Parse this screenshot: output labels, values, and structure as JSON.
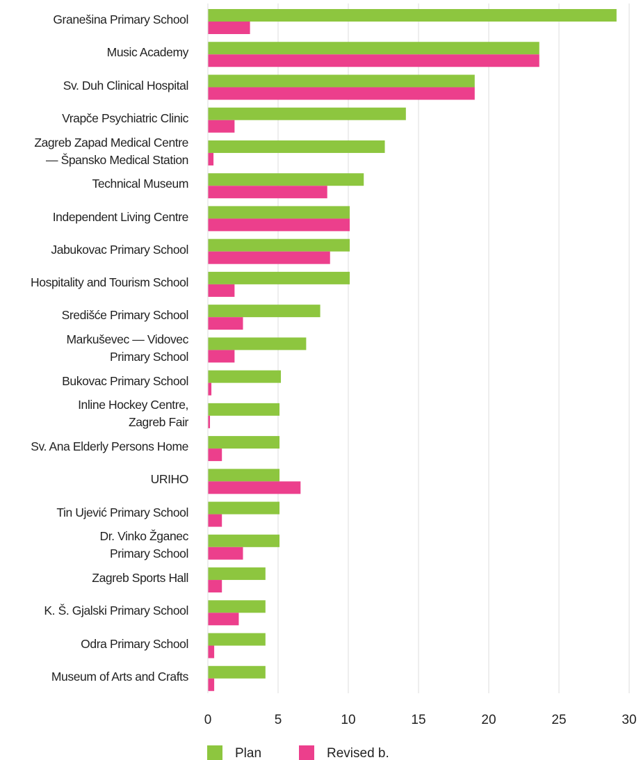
{
  "chart_data": {
    "type": "barh",
    "categories": [
      "Granešina Primary School",
      "Music Academy",
      "Sv. Duh Clinical Hospital",
      "Vrapče Psychiatric Clinic",
      "Zagreb Zapad Medical Centre\n— Špansko Medical Station",
      "Technical Museum",
      "Independent Living Centre",
      "Jabukovac Primary School",
      "Hospitality and Tourism School",
      "Središće Primary School",
      "Markuševec — Vidovec\nPrimary School",
      "Bukovac Primary School",
      "Inline Hockey Centre,\nZagreb Fair",
      "Sv.  Ana Elderly Persons Home",
      "URIHO",
      "Tin Ujević Primary School",
      "Dr. Vinko Žganec\nPrimary School",
      "Zagreb Sports Hall",
      "K. Š. Gjalski Primary School",
      "Odra Primary School",
      "Museum of Arts and Crafts"
    ],
    "series": [
      {
        "name": "Plan",
        "color": "#8dc63f",
        "values": [
          29.1,
          23.6,
          19.0,
          14.1,
          12.6,
          11.1,
          10.1,
          10.1,
          10.1,
          8.0,
          7.0,
          5.2,
          5.1,
          5.1,
          5.1,
          5.1,
          5.1,
          4.1,
          4.1,
          4.1,
          4.1
        ]
      },
      {
        "name": "Revised b.",
        "color": "#ec3f8c",
        "values": [
          3.0,
          23.6,
          19.0,
          1.9,
          0.4,
          8.5,
          10.1,
          8.7,
          1.9,
          2.5,
          1.9,
          0.25,
          0.15,
          1.0,
          6.6,
          1.0,
          2.5,
          1.0,
          2.2,
          0.45,
          0.45
        ]
      }
    ],
    "xlim": [
      0,
      30
    ],
    "xticks": [
      0,
      5,
      10,
      15,
      20,
      25,
      30
    ],
    "grid": true
  }
}
